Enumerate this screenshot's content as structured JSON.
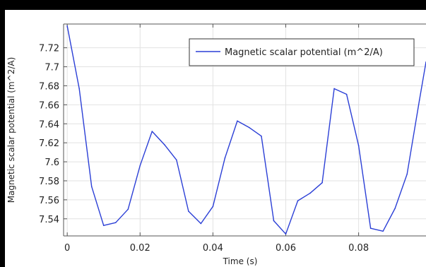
{
  "chart_data": {
    "type": "line",
    "title": "",
    "xlabel": "Time (s)",
    "ylabel": "Magnetic scalar potential (m^2/A)",
    "xlim": [
      -0.001,
      0.0985
    ],
    "ylim": [
      7.522,
      7.745
    ],
    "xticks": [
      0,
      0.02,
      0.04,
      0.06,
      0.08
    ],
    "xtick_labels": [
      "0",
      "0.02",
      "0.04",
      "0.06",
      "0.08"
    ],
    "yticks": [
      7.54,
      7.56,
      7.58,
      7.6,
      7.62,
      7.64,
      7.66,
      7.68,
      7.7,
      7.72
    ],
    "ytick_labels": [
      "7.54",
      "7.56",
      "7.58",
      "7.6",
      "7.62",
      "7.64",
      "7.66",
      "7.68",
      "7.7",
      "7.72"
    ],
    "grid": true,
    "legend_position": "top-right",
    "series": [
      {
        "name": "Magnetic scalar potential (m^2/A)",
        "color": "#2b3fd6",
        "x": [
          0,
          0.0033,
          0.0067,
          0.01,
          0.0133,
          0.0167,
          0.02,
          0.0233,
          0.0267,
          0.03,
          0.0333,
          0.0367,
          0.04,
          0.0433,
          0.0467,
          0.05,
          0.0533,
          0.0567,
          0.06,
          0.0633,
          0.0667,
          0.07,
          0.0733,
          0.0767,
          0.08,
          0.0833,
          0.0867,
          0.09,
          0.0933,
          0.0967,
          0.0985
        ],
        "values": [
          7.743,
          7.677,
          7.574,
          7.533,
          7.536,
          7.55,
          7.596,
          7.632,
          7.618,
          7.602,
          7.548,
          7.535,
          7.553,
          7.604,
          7.643,
          7.636,
          7.627,
          7.538,
          7.524,
          7.559,
          7.567,
          7.578,
          7.677,
          7.671,
          7.617,
          7.53,
          7.527,
          7.551,
          7.587,
          7.665,
          7.705
        ]
      }
    ]
  }
}
